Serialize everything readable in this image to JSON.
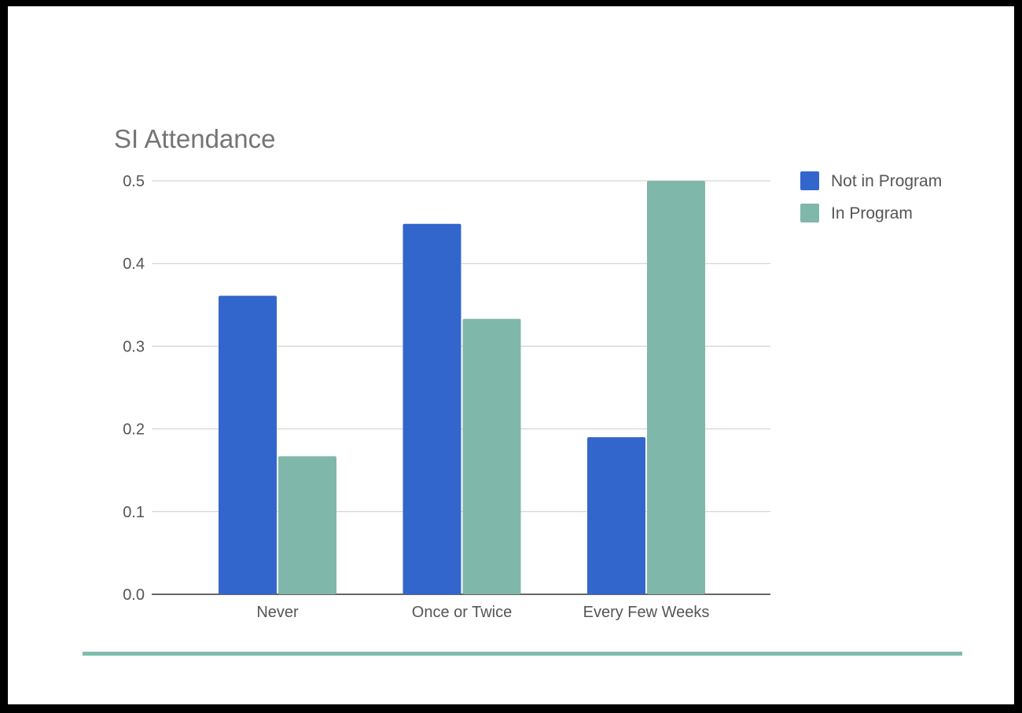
{
  "chart_data": {
    "type": "bar",
    "title": "SI Attendance",
    "xlabel": "",
    "ylabel": "",
    "categories": [
      "Never",
      "Once or Twice",
      "Every Few Weeks"
    ],
    "series": [
      {
        "name": "Not in Program",
        "color": "#3366cc",
        "values": [
          0.361,
          0.448,
          0.19
        ]
      },
      {
        "name": "In Program",
        "color": "#80b7ab",
        "values": [
          0.167,
          0.333,
          0.5
        ]
      }
    ],
    "ylim": [
      0,
      0.5
    ],
    "yticks": [
      "0.0",
      "0.1",
      "0.2",
      "0.3",
      "0.4",
      "0.5"
    ],
    "grid": true,
    "legend": "right",
    "accent_line_color": "#7fbcac"
  }
}
